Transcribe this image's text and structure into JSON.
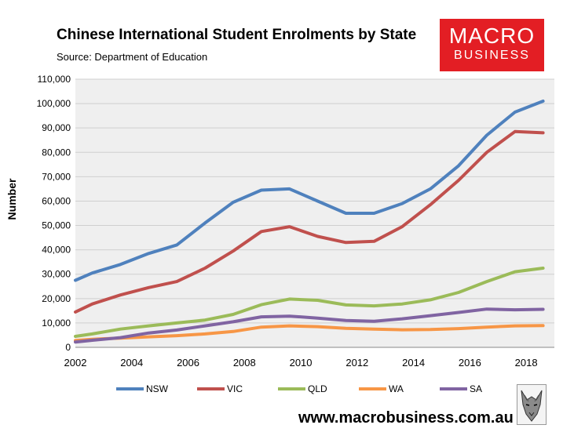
{
  "header": {
    "title": "Chinese International Student Enrolments by State",
    "subtitle": "Source: Department of Education"
  },
  "brand": {
    "logo_top": "MACRO",
    "logo_bottom": "BUSINESS",
    "logo_color": "#e31e24",
    "url": "www.macrobusiness.com.au",
    "mascot_icon": "wolf-head-icon"
  },
  "chart_data": {
    "type": "line",
    "title": "Chinese International Student Enrolments by State",
    "ylabel": "Number",
    "xlabel": "",
    "xlim": [
      2002,
      2019
    ],
    "ylim": [
      0,
      110000
    ],
    "x_ticks": [
      2002,
      2004,
      2006,
      2008,
      2010,
      2012,
      2014,
      2016,
      2018
    ],
    "y_ticks": [
      0,
      10000,
      20000,
      30000,
      40000,
      50000,
      60000,
      70000,
      80000,
      90000,
      100000,
      110000
    ],
    "y_tick_labels": [
      "0",
      "10,000",
      "20,000",
      "30,000",
      "40,000",
      "50,000",
      "60,000",
      "70,000",
      "80,000",
      "90,000",
      "100,000",
      "110,000"
    ],
    "x_tick_labels": [
      "2002",
      "2004",
      "2006",
      "2008",
      "2010",
      "2012",
      "2014",
      "2016",
      "2018"
    ],
    "grid": true,
    "plot_background": "#efefef",
    "legend": "bottom",
    "x": [
      2002,
      2002.6,
      2003.6,
      2004.6,
      2005.6,
      2006.6,
      2007.6,
      2008.6,
      2009.6,
      2010.6,
      2011.6,
      2012.6,
      2013.6,
      2014.6,
      2015.6,
      2016.6,
      2017.6,
      2018.6
    ],
    "series": [
      {
        "name": "NSW",
        "color": "#4f81bd",
        "values": [
          27500,
          30500,
          34000,
          38500,
          42000,
          51000,
          59500,
          64500,
          65000,
          60000,
          55000,
          55000,
          59000,
          65000,
          74500,
          87000,
          96500,
          101000
        ]
      },
      {
        "name": "VIC",
        "color": "#c0504d",
        "values": [
          14500,
          17800,
          21500,
          24500,
          27000,
          32500,
          39500,
          47500,
          49500,
          45500,
          43000,
          43500,
          49500,
          58500,
          68500,
          80000,
          88500,
          88000
        ]
      },
      {
        "name": "QLD",
        "color": "#9bbb59",
        "values": [
          4500,
          5500,
          7500,
          8800,
          10000,
          11200,
          13500,
          17500,
          19800,
          19300,
          17400,
          17000,
          17800,
          19500,
          22500,
          27000,
          31000,
          32500
        ]
      },
      {
        "name": "WA",
        "color": "#f79646",
        "values": [
          2800,
          3300,
          3800,
          4300,
          4800,
          5500,
          6500,
          8300,
          8800,
          8500,
          7800,
          7500,
          7200,
          7300,
          7700,
          8300,
          8800,
          8900
        ]
      },
      {
        "name": "SA",
        "color": "#8064a2",
        "values": [
          2200,
          2900,
          4000,
          5900,
          7100,
          8800,
          10500,
          12500,
          12800,
          12000,
          11000,
          10700,
          11700,
          13000,
          14300,
          15700,
          15400,
          15600
        ]
      }
    ]
  }
}
